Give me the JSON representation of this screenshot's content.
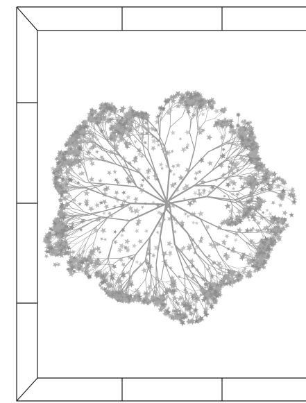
{
  "scene": {
    "subject": "tree-canopy-top-view",
    "frame": "planter-border",
    "colors": {
      "background": "#ffffff",
      "frame_line": "#1a1a1a",
      "branch": "#9a9a9a",
      "foliage": "#a8a8a8",
      "foliage_dark": "#8c8c8c"
    }
  }
}
